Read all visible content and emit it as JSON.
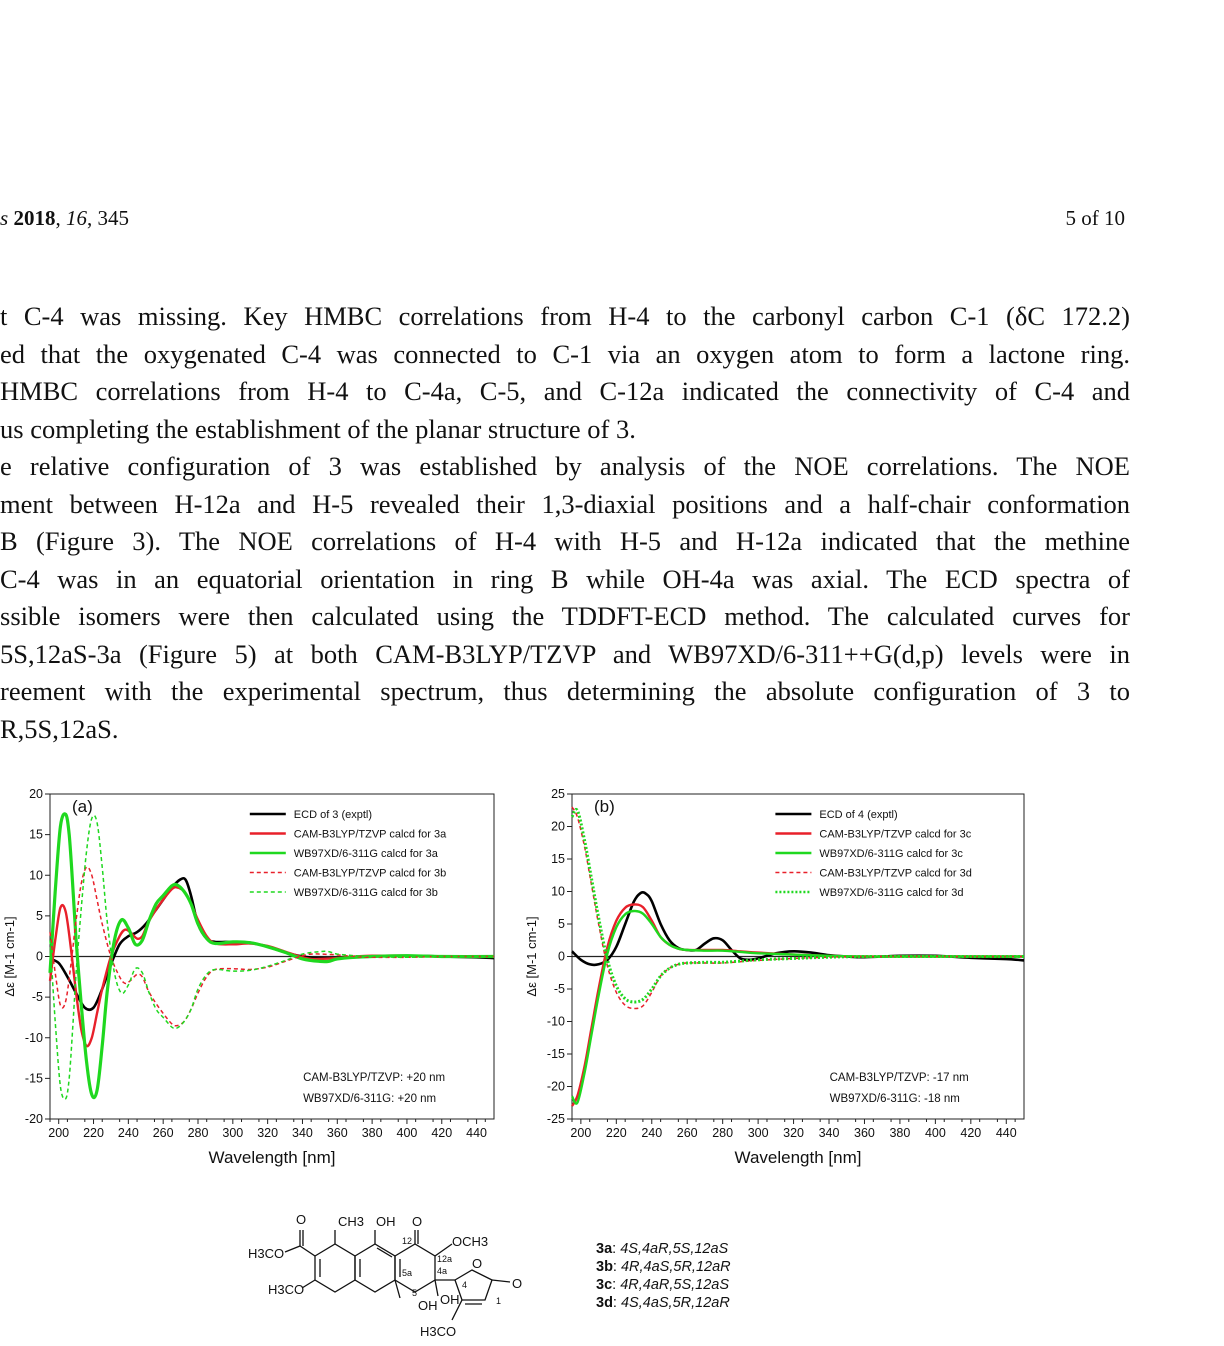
{
  "header": {
    "journal_prefix": "s",
    "year": "2018",
    "volume": "16",
    "article": "345",
    "page_info": "5 of 10"
  },
  "paragraphs": [
    {
      "lines": [
        "t C-4 was missing. Key HMBC correlations from H-4 to the carbonyl carbon C-1 (δC 172.2)",
        "ed that the oxygenated C-4 was connected to C-1 via an oxygen atom to form a lactone ring.",
        "HMBC correlations from H-4 to C-4a, C-5, and C-12a indicated the connectivity of C-4 and",
        "us completing the establishment of the planar structure of 3."
      ]
    },
    {
      "lines": [
        "e relative configuration of 3 was established by analysis of the NOE correlations. The NOE",
        "ment between H-12a and H-5 revealed their 1,3-diaxial positions and a half-chair conformation",
        "B (Figure 3). The NOE correlations of H-4 with H-5 and H-12a indicated that the methine",
        "C-4 was in an equatorial orientation in ring B while OH-4a was axial. The ECD spectra of",
        "ssible isomers were then calculated using the TDDFT-ECD method. The calculated curves for",
        "5S,12aS-3a (Figure 5) at both CAM-B3LYP/TZVP and WB97XD/6-311++G(d,p) levels were in",
        "reement with the experimental spectrum, thus determining the absolute configuration of 3 to",
        "R,5S,12aS."
      ]
    }
  ],
  "chart_data": [
    {
      "type": "line",
      "panel_label": "a",
      "xlabel": "Wavelength [nm]",
      "ylabel": "Δε [M-1 cm-1]",
      "xlim": [
        195,
        450
      ],
      "ylim": [
        -20,
        20
      ],
      "x_ticks": [
        200,
        220,
        240,
        260,
        280,
        300,
        320,
        340,
        360,
        380,
        400,
        420,
        440
      ],
      "y_ticks": [
        20,
        15,
        10,
        5,
        0,
        -5,
        -10,
        -15,
        -20
      ],
      "annotations": [
        "CAM-B3LYP/TZVP: +20 nm",
        "WB97XD/6-311G: +20 nm"
      ],
      "series": [
        {
          "name": "ECD of 3 (exptl)",
          "color": "#000000",
          "dash": "solid",
          "width": 2.6,
          "x": [
            195,
            200,
            205,
            210,
            215,
            220,
            225,
            230,
            235,
            240,
            245,
            250,
            255,
            260,
            265,
            270,
            273,
            276,
            280,
            285,
            290,
            300,
            310,
            320,
            330,
            340,
            350,
            360,
            380,
            400,
            420,
            440,
            450
          ],
          "y": [
            -0.3,
            -0.8,
            -2.5,
            -4.5,
            -6.3,
            -6.3,
            -4,
            -1,
            1.5,
            2.5,
            3,
            4,
            5.5,
            7,
            8.5,
            9.5,
            9.4,
            7.5,
            4,
            2.2,
            1.8,
            1.8,
            1.7,
            1.2,
            0.5,
            0,
            -0.2,
            -0.2,
            0,
            0.1,
            0,
            -0.1,
            -0.2
          ]
        },
        {
          "name": "CAM-B3LYP/TZVP calcd for 3a",
          "color": "#e8202a",
          "dash": "solid",
          "width": 2.4,
          "x": [
            195,
            198,
            201,
            204,
            207,
            210,
            213,
            216,
            219,
            222,
            225,
            230,
            235,
            238,
            241,
            245,
            248,
            251,
            255,
            260,
            265,
            268,
            272,
            276,
            280,
            285,
            290,
            300,
            310,
            320,
            330,
            340,
            345,
            350,
            360,
            370,
            380,
            400,
            420,
            450
          ],
          "y": [
            -3,
            2,
            6,
            5.5,
            1,
            -4.5,
            -9,
            -11,
            -10,
            -7,
            -4,
            0,
            2.5,
            3.3,
            3,
            2.2,
            2.5,
            4,
            5.5,
            7,
            8.3,
            8.5,
            8,
            6.5,
            4.5,
            2.5,
            1.6,
            1.5,
            1.6,
            1.3,
            0.6,
            -0.1,
            -0.3,
            -0.3,
            -0.2,
            0,
            0.1,
            0.1,
            0,
            0
          ]
        },
        {
          "name": "WB97XD/6-311G calcd for 3a",
          "color": "#1fd81f",
          "dash": "solid",
          "width": 3.2,
          "x": [
            195,
            198,
            201,
            204,
            206,
            208,
            210,
            213,
            216,
            219,
            222,
            225,
            228,
            232,
            236,
            240,
            244,
            248,
            252,
            256,
            260,
            265,
            268,
            272,
            276,
            280,
            285,
            290,
            300,
            310,
            320,
            330,
            340,
            350,
            355,
            360,
            370,
            380,
            400,
            420,
            450
          ],
          "y": [
            -2,
            8,
            16,
            17.5,
            15,
            9,
            2,
            -6,
            -13,
            -17,
            -16.5,
            -11,
            -4,
            2,
            4.5,
            3.5,
            1.5,
            2,
            4.5,
            6.5,
            7.5,
            8.7,
            8.8,
            8,
            6.5,
            4,
            2.2,
            1.6,
            1.8,
            1.7,
            1.2,
            0.5,
            -0.3,
            -0.6,
            -0.6,
            -0.3,
            -0.1,
            0,
            0.1,
            0,
            0
          ]
        },
        {
          "name": "CAM-B3LYP/TZVP calcd for 3b",
          "color": "#e8202a",
          "dash": "dashed",
          "width": 1.5,
          "x": [
            195,
            198,
            201,
            204,
            207,
            210,
            213,
            216,
            219,
            222,
            225,
            230,
            235,
            238,
            241,
            245,
            248,
            251,
            255,
            260,
            265,
            268,
            272,
            276,
            280,
            285,
            290,
            300,
            310,
            320,
            330,
            340,
            345,
            350,
            360,
            370,
            380,
            400,
            420,
            450
          ],
          "y": [
            3,
            -2,
            -6,
            -5.5,
            -1,
            4.5,
            9,
            11,
            10,
            7,
            4,
            0,
            -2.5,
            -3.3,
            -3,
            -2.2,
            -2.5,
            -4,
            -5.5,
            -7,
            -8.3,
            -8.5,
            -8,
            -6.5,
            -4.5,
            -2.5,
            -1.6,
            -1.5,
            -1.6,
            -1.3,
            -0.6,
            0.1,
            0.3,
            0.3,
            0.2,
            0,
            -0.1,
            -0.1,
            0,
            0
          ]
        },
        {
          "name": "WB97XD/6-311G calcd for 3b",
          "color": "#1fd81f",
          "dash": "dashed",
          "width": 1.5,
          "x": [
            195,
            198,
            201,
            204,
            206,
            208,
            210,
            213,
            216,
            219,
            222,
            225,
            228,
            232,
            236,
            240,
            244,
            248,
            252,
            256,
            260,
            265,
            268,
            272,
            276,
            280,
            285,
            290,
            300,
            310,
            320,
            330,
            340,
            350,
            355,
            360,
            370,
            380,
            400,
            420,
            450
          ],
          "y": [
            2,
            -8,
            -16,
            -17.5,
            -15,
            -9,
            -2,
            6,
            13,
            17,
            16.5,
            11,
            4,
            -2,
            -4.5,
            -3.5,
            -1.5,
            -2,
            -4.5,
            -6.5,
            -7.5,
            -8.7,
            -8.8,
            -8,
            -6.5,
            -4,
            -2.2,
            -1.6,
            -1.8,
            -1.7,
            -1.2,
            -0.5,
            0.3,
            0.6,
            0.6,
            0.3,
            0.1,
            0,
            -0.1,
            0,
            0
          ]
        }
      ]
    },
    {
      "type": "line",
      "panel_label": "b",
      "xlabel": "Wavelength [nm]",
      "ylabel": "Δε [M-1 cm-1]",
      "xlim": [
        195,
        450
      ],
      "ylim": [
        -25,
        25
      ],
      "x_ticks": [
        200,
        220,
        240,
        260,
        280,
        300,
        320,
        340,
        360,
        380,
        400,
        420,
        440
      ],
      "y_ticks": [
        25,
        20,
        15,
        10,
        5,
        0,
        -5,
        -10,
        -15,
        -20,
        -25
      ],
      "annotations": [
        "CAM-B3LYP/TZVP: -17 nm",
        "WB97XD/6-311G: -18 nm"
      ],
      "series": [
        {
          "name": "ECD of 4 (exptl)",
          "color": "#000000",
          "dash": "solid",
          "width": 2.6,
          "x": [
            195,
            200,
            205,
            210,
            215,
            220,
            225,
            230,
            234,
            237,
            240,
            245,
            250,
            255,
            260,
            265,
            270,
            275,
            280,
            285,
            290,
            295,
            300,
            310,
            320,
            330,
            340,
            350,
            360,
            380,
            400,
            420,
            440,
            450
          ],
          "y": [
            0.8,
            -0.5,
            -1.2,
            -1.2,
            -0.5,
            1.5,
            5,
            8.5,
            9.8,
            9.6,
            8.5,
            5,
            2.5,
            1.3,
            1,
            1,
            2,
            2.8,
            2.5,
            1,
            -0.3,
            -0.5,
            -0.3,
            0.5,
            0.8,
            0.6,
            0.2,
            0,
            -0.1,
            0.1,
            0.1,
            -0.2,
            -0.4,
            -0.6
          ]
        },
        {
          "name": "CAM-B3LYP/TZVP calcd for 3c",
          "color": "#e8202a",
          "dash": "solid",
          "width": 2.4,
          "x": [
            195,
            198,
            202,
            206,
            210,
            215,
            220,
            225,
            230,
            235,
            240,
            245,
            250,
            255,
            260,
            270,
            280,
            290,
            300,
            320,
            340,
            360,
            380,
            400,
            420,
            450
          ],
          "y": [
            -23,
            -21.5,
            -17,
            -11,
            -5,
            1.5,
            5.5,
            7.5,
            8,
            7.6,
            5.5,
            3,
            1.8,
            1.2,
            1,
            1,
            1,
            0.8,
            0.6,
            0.3,
            0.1,
            0,
            0,
            0,
            0,
            0
          ]
        },
        {
          "name": "WB97XD/6-311G calcd for 3c",
          "color": "#1fd81f",
          "dash": "solid",
          "width": 2.4,
          "x": [
            195,
            198,
            202,
            206,
            210,
            215,
            220,
            225,
            230,
            235,
            240,
            245,
            250,
            255,
            260,
            270,
            280,
            290,
            300,
            320,
            340,
            360,
            380,
            400,
            420,
            450
          ],
          "y": [
            -21.5,
            -22.5,
            -18,
            -12,
            -6,
            0.5,
            4.5,
            6.5,
            7,
            6.6,
            5,
            3,
            1.8,
            1.2,
            1,
            0.9,
            0.9,
            0.7,
            0.5,
            0.3,
            0.1,
            0,
            0,
            0,
            0,
            0
          ]
        },
        {
          "name": "CAM-B3LYP/TZVP calcd for 3d",
          "color": "#e8202a",
          "dash": "dashed",
          "width": 1.5,
          "x": [
            195,
            198,
            202,
            206,
            210,
            215,
            220,
            225,
            230,
            235,
            240,
            245,
            250,
            255,
            260,
            270,
            280,
            290,
            300,
            320,
            340,
            360,
            380,
            400,
            420,
            450
          ],
          "y": [
            23,
            21.5,
            17,
            11,
            5,
            -1.5,
            -5.5,
            -7.5,
            -8,
            -7.6,
            -5.5,
            -3,
            -1.8,
            -1.2,
            -1,
            -1,
            -1,
            -0.8,
            -0.6,
            -0.3,
            -0.1,
            0,
            0,
            0,
            0,
            0
          ]
        },
        {
          "name": "WB97XD/6-311G calcd for 3d",
          "color": "#1fd81f",
          "dash": "dotted",
          "width": 3,
          "x": [
            195,
            198,
            202,
            206,
            210,
            215,
            220,
            225,
            230,
            235,
            240,
            245,
            250,
            255,
            260,
            270,
            280,
            290,
            300,
            320,
            340,
            360,
            380,
            400,
            420,
            450
          ],
          "y": [
            21.5,
            22.5,
            18,
            12,
            6,
            -0.5,
            -4.5,
            -6.5,
            -7,
            -6.6,
            -5,
            -3,
            -1.8,
            -1.2,
            -1,
            -0.9,
            -0.9,
            -0.7,
            -0.5,
            -0.3,
            -0.1,
            0,
            0,
            0,
            0,
            0
          ]
        }
      ]
    }
  ],
  "structure": {
    "labels": [
      "O",
      "CH3",
      "OH",
      "O",
      "12",
      "OCH3",
      "H3CO",
      "12a",
      "4a",
      "5a",
      "H3CO",
      "5",
      "4",
      "O",
      "O",
      "1",
      "OH",
      "OH",
      "H3CO"
    ]
  },
  "isomers": [
    {
      "id": "3a",
      "config": "4S,4aR,5S,12aS"
    },
    {
      "id": "3b",
      "config": "4R,4aS,5R,12aR"
    },
    {
      "id": "3c",
      "config": "4R,4aR,5S,12aS"
    },
    {
      "id": "3d",
      "config": "4S,4aS,5R,12aR"
    }
  ]
}
